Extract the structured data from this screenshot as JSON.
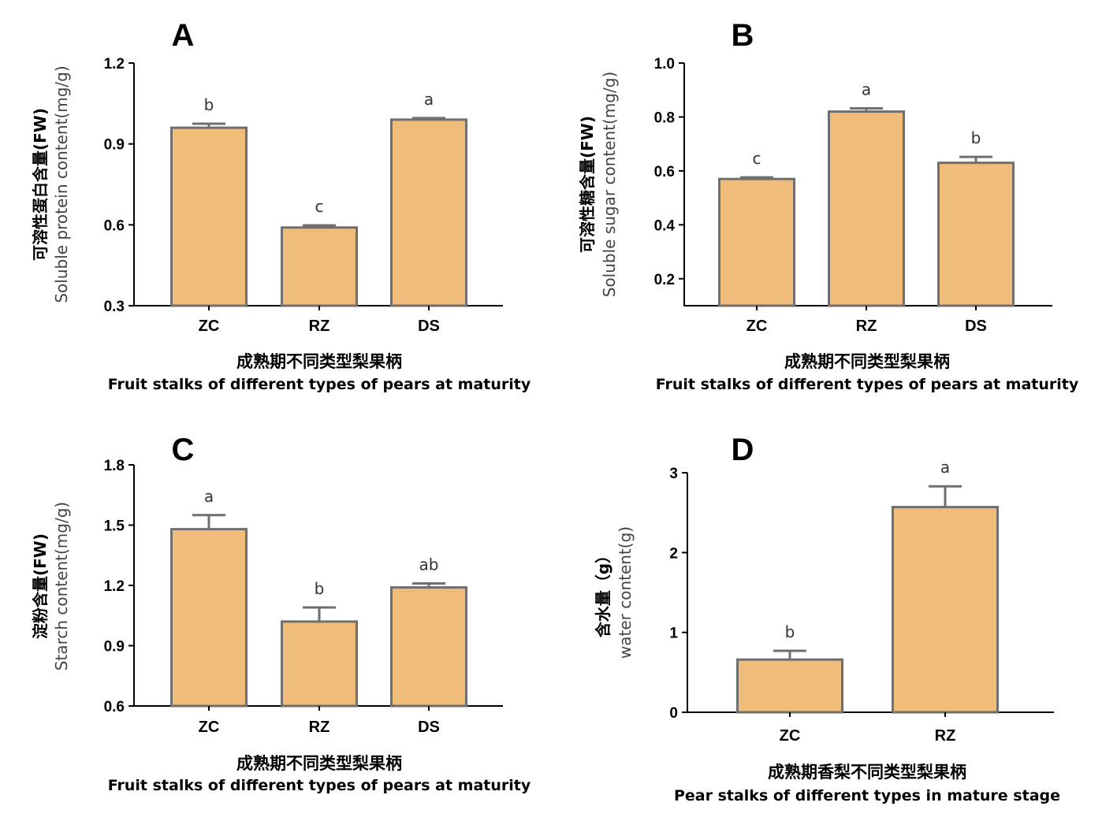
{
  "colors": {
    "bar_fill": "#efbd79",
    "bar_stroke": "#6f6f6f",
    "axis": "#000000"
  },
  "chart_data": [
    {
      "type": "bar",
      "panel": "A",
      "categories": [
        "ZC",
        "RZ",
        "DS"
      ],
      "values": [
        0.96,
        0.59,
        0.99
      ],
      "errors": [
        0.015,
        0.008,
        0.006
      ],
      "significance": [
        "b",
        "c",
        "a"
      ],
      "ylabel_cn": "可溶性蛋白含量(FW)",
      "ylabel_en": "Soluble protein content(mg/g)",
      "xlabel_cn": "成熟期不同类型梨果柄",
      "xlabel_en": "Fruit stalks of different types of pears at maturity",
      "ylim": [
        0.3,
        1.2
      ],
      "yticks": [
        "0.3",
        "0.6",
        "0.9",
        "1.2"
      ]
    },
    {
      "type": "bar",
      "panel": "B",
      "categories": [
        "ZC",
        "RZ",
        "DS"
      ],
      "values": [
        0.57,
        0.82,
        0.63
      ],
      "errors": [
        0.006,
        0.012,
        0.022
      ],
      "significance": [
        "c",
        "a",
        "b"
      ],
      "ylabel_cn": "可溶性糖含量(FW)",
      "ylabel_en": "Soluble sugar content(mg/g)",
      "xlabel_cn": "成熟期不同类型梨果柄",
      "xlabel_en": "Fruit stalks of different types of pears at maturity",
      "ylim": [
        0.1,
        1.0
      ],
      "yticks": [
        "0.2",
        "0.4",
        "0.6",
        "0.8",
        "1.0"
      ]
    },
    {
      "type": "bar",
      "panel": "C",
      "categories": [
        "ZC",
        "RZ",
        "DS"
      ],
      "values": [
        1.48,
        1.02,
        1.19
      ],
      "errors": [
        0.07,
        0.07,
        0.02
      ],
      "significance": [
        "a",
        "b",
        "ab"
      ],
      "ylabel_cn": "淀粉含量(FW)",
      "ylabel_en": "Starch content(mg/g)",
      "xlabel_cn": "成熟期不同类型梨果柄",
      "xlabel_en": "Fruit stalks of different types of pears at maturity",
      "ylim": [
        0.6,
        1.8
      ],
      "yticks": [
        "0.6",
        "0.9",
        "1.2",
        "1.5",
        "1.8"
      ]
    },
    {
      "type": "bar",
      "panel": "D",
      "categories": [
        "ZC",
        "RZ"
      ],
      "values": [
        0.66,
        2.57
      ],
      "errors": [
        0.11,
        0.26
      ],
      "significance": [
        "b",
        "a"
      ],
      "ylabel_cn": "含水量（g）",
      "ylabel_en": "water content(g)",
      "xlabel_cn": "成熟期香梨不同类型梨果柄",
      "xlabel_en": "Pear stalks of different types in mature stage",
      "ylim": [
        0,
        3
      ],
      "yticks": [
        "0",
        "1",
        "2",
        "3"
      ]
    }
  ]
}
